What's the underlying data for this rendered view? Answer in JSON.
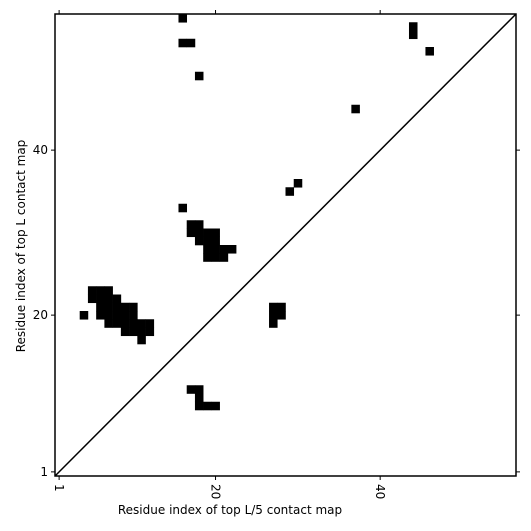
{
  "chart_data": {
    "type": "scatter",
    "marker": "square",
    "xlabel": "Residue index of top L/5 contact map",
    "ylabel": "Residue index of top L contact map",
    "xlim": [
      0.5,
      56.5
    ],
    "ylim": [
      0.5,
      56.5
    ],
    "xticks": [
      1,
      20,
      40
    ],
    "yticks": [
      1,
      20,
      40
    ],
    "diagonal": true,
    "color": "#000000",
    "series": [
      {
        "x": [
          16,
          16,
          17,
          18,
          44,
          44,
          46,
          37,
          30,
          29,
          16,
          17,
          18,
          17,
          18,
          19,
          20,
          18,
          19,
          20,
          19,
          20,
          21,
          22,
          19,
          20,
          21,
          27,
          28,
          27,
          28,
          27,
          4,
          5,
          6,
          7,
          5,
          6,
          7,
          8,
          6,
          7,
          8,
          9,
          10,
          6,
          7,
          8,
          9,
          10,
          7,
          8,
          9,
          10,
          11,
          12,
          9,
          10,
          11,
          12,
          11,
          17,
          18,
          18,
          18,
          19,
          20
        ],
        "values": [
          56,
          53,
          53,
          49,
          55,
          54,
          52,
          45,
          36,
          35,
          33,
          31,
          31,
          30,
          30,
          30,
          30,
          29,
          29,
          29,
          28,
          28,
          28,
          28,
          27,
          27,
          27,
          21,
          21,
          20,
          20,
          19,
          20,
          23,
          23,
          23,
          22,
          22,
          22,
          22,
          21,
          21,
          21,
          21,
          21,
          20,
          20,
          20,
          20,
          20,
          19,
          19,
          19,
          19,
          19,
          19,
          18,
          18,
          18,
          18,
          17,
          11,
          11,
          10,
          9,
          9,
          9
        ]
      }
    ]
  }
}
